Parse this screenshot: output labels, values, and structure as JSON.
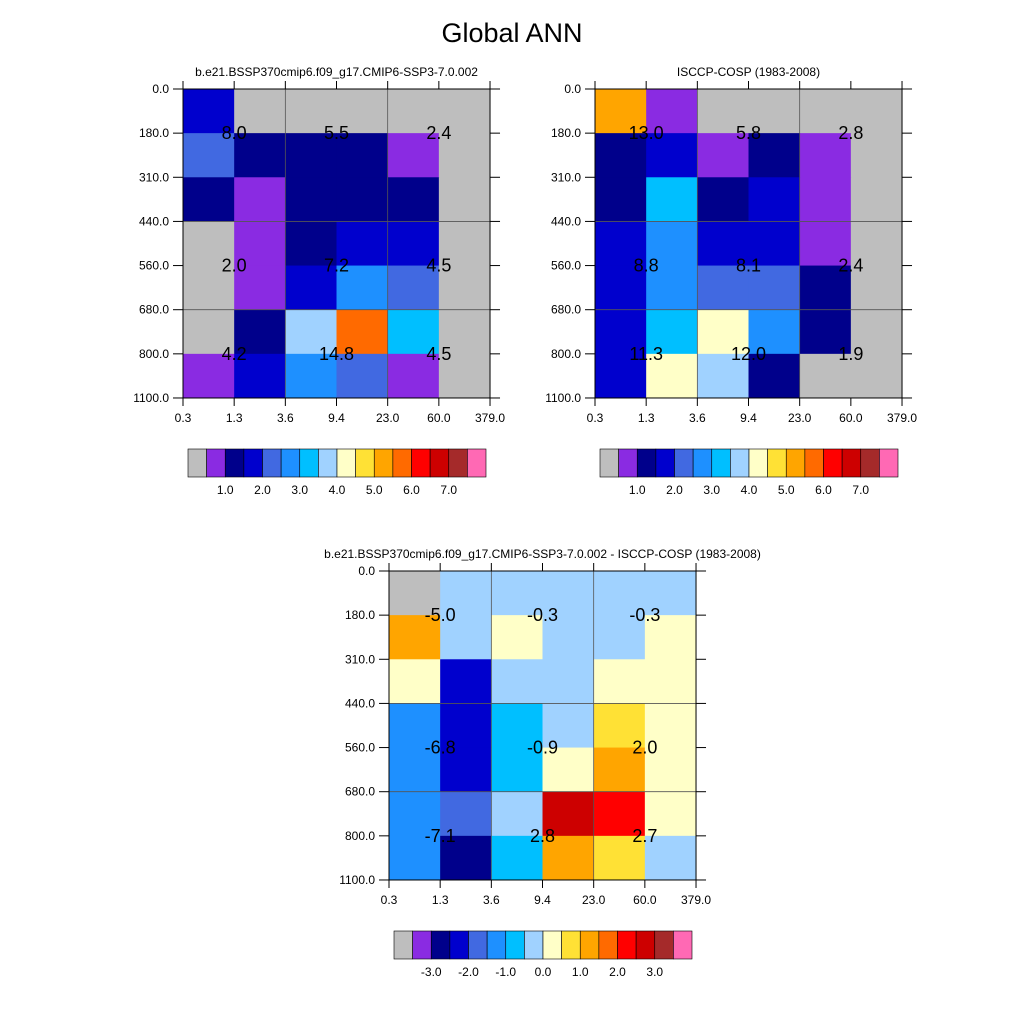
{
  "title": "Global ANN",
  "chart_data": [
    {
      "type": "heatmap",
      "title": "b.e21.BSSP370cmip6.f09_g17.CMIP6-SSP3-7.0.002",
      "x_ticks": [
        "0.3",
        "1.3",
        "3.6",
        "9.4",
        "23.0",
        "60.0",
        "379.0"
      ],
      "y_ticks": [
        "0.0",
        "180.0",
        "310.0",
        "440.0",
        "560.0",
        "680.0",
        "800.0",
        "1100.0"
      ],
      "colorbar_levels": [
        "1.0",
        "2.0",
        "3.0",
        "4.0",
        "5.0",
        "6.0",
        "7.0"
      ],
      "grid": true,
      "cell_colors": [
        [
          "#0000CD",
          "#BEBEBE",
          "#BEBEBE",
          "#BEBEBE",
          "#BEBEBE",
          "#BEBEBE"
        ],
        [
          "#4169E1",
          "#00008B",
          "#00008B",
          "#00008B",
          "#8A2BE2",
          "#BEBEBE"
        ],
        [
          "#00008B",
          "#8A2BE2",
          "#00008B",
          "#00008B",
          "#00008B",
          "#BEBEBE"
        ],
        [
          "#BEBEBE",
          "#8A2BE2",
          "#00008B",
          "#0000CD",
          "#0000CD",
          "#BEBEBE"
        ],
        [
          "#BEBEBE",
          "#8A2BE2",
          "#0000CD",
          "#1E90FF",
          "#4169E1",
          "#BEBEBE"
        ],
        [
          "#BEBEBE",
          "#00008B",
          "#A0D2FF",
          "#FF6A00",
          "#00BFFF",
          "#BEBEBE"
        ],
        [
          "#8A2BE2",
          "#0000CD",
          "#1E90FF",
          "#4169E1",
          "#8A2BE2",
          "#BEBEBE"
        ]
      ],
      "annotations": [
        {
          "text": "8.0",
          "x": "1.3",
          "y": "180.0"
        },
        {
          "text": "5.5",
          "x": "9.4",
          "y": "180.0"
        },
        {
          "text": "2.4",
          "x": "60.0",
          "y": "180.0"
        },
        {
          "text": "2.0",
          "x": "1.3",
          "y": "560.0"
        },
        {
          "text": "7.2",
          "x": "9.4",
          "y": "560.0"
        },
        {
          "text": "4.5",
          "x": "60.0",
          "y": "560.0"
        },
        {
          "text": "4.2",
          "x": "1.3",
          "y": "800.0"
        },
        {
          "text": "14.8",
          "x": "9.4",
          "y": "800.0"
        },
        {
          "text": "4.5",
          "x": "60.0",
          "y": "800.0"
        }
      ]
    },
    {
      "type": "heatmap",
      "title": "ISCCP-COSP (1983-2008)",
      "x_ticks": [
        "0.3",
        "1.3",
        "3.6",
        "9.4",
        "23.0",
        "60.0",
        "379.0"
      ],
      "y_ticks": [
        "0.0",
        "180.0",
        "310.0",
        "440.0",
        "560.0",
        "680.0",
        "800.0",
        "1100.0"
      ],
      "colorbar_levels": [
        "1.0",
        "2.0",
        "3.0",
        "4.0",
        "5.0",
        "6.0",
        "7.0"
      ],
      "grid": true,
      "cell_colors": [
        [
          "#FFA500",
          "#8A2BE2",
          "#BEBEBE",
          "#BEBEBE",
          "#BEBEBE",
          "#BEBEBE"
        ],
        [
          "#00008B",
          "#0000CD",
          "#8A2BE2",
          "#00008B",
          "#8A2BE2",
          "#BEBEBE"
        ],
        [
          "#00008B",
          "#00BFFF",
          "#00008B",
          "#0000CD",
          "#8A2BE2",
          "#BEBEBE"
        ],
        [
          "#0000CD",
          "#1E90FF",
          "#0000CD",
          "#0000CD",
          "#8A2BE2",
          "#BEBEBE"
        ],
        [
          "#0000CD",
          "#1E90FF",
          "#4169E1",
          "#4169E1",
          "#00008B",
          "#BEBEBE"
        ],
        [
          "#0000CD",
          "#00BFFF",
          "#FFFFC8",
          "#1E90FF",
          "#00008B",
          "#BEBEBE"
        ],
        [
          "#0000CD",
          "#FFFFC8",
          "#A0D2FF",
          "#00008B",
          "#BEBEBE",
          "#BEBEBE"
        ]
      ],
      "annotations": [
        {
          "text": "13.0",
          "x": "1.3",
          "y": "180.0"
        },
        {
          "text": "5.8",
          "x": "9.4",
          "y": "180.0"
        },
        {
          "text": "2.8",
          "x": "60.0",
          "y": "180.0"
        },
        {
          "text": "8.8",
          "x": "1.3",
          "y": "560.0"
        },
        {
          "text": "8.1",
          "x": "9.4",
          "y": "560.0"
        },
        {
          "text": "2.4",
          "x": "60.0",
          "y": "560.0"
        },
        {
          "text": "11.3",
          "x": "1.3",
          "y": "800.0"
        },
        {
          "text": "12.0",
          "x": "9.4",
          "y": "800.0"
        },
        {
          "text": "1.9",
          "x": "60.0",
          "y": "800.0"
        }
      ]
    },
    {
      "type": "heatmap",
      "title": "b.e21.BSSP370cmip6.f09_g17.CMIP6-SSP3-7.0.002 - ISCCP-COSP (1983-2008)",
      "x_ticks": [
        "0.3",
        "1.3",
        "3.6",
        "9.4",
        "23.0",
        "60.0",
        "379.0"
      ],
      "y_ticks": [
        "0.0",
        "180.0",
        "310.0",
        "440.0",
        "560.0",
        "680.0",
        "800.0",
        "1100.0"
      ],
      "colorbar_levels": [
        "-3.0",
        "-2.0",
        "-1.0",
        "0.0",
        "1.0",
        "2.0",
        "3.0"
      ],
      "grid": true,
      "cell_colors": [
        [
          "#BEBEBE",
          "#A0D2FF",
          "#A0D2FF",
          "#A0D2FF",
          "#A0D2FF",
          "#A0D2FF"
        ],
        [
          "#FFA500",
          "#A0D2FF",
          "#FFFFC8",
          "#A0D2FF",
          "#A0D2FF",
          "#FFFFC8"
        ],
        [
          "#FFFFC8",
          "#0000CD",
          "#A0D2FF",
          "#A0D2FF",
          "#FFFFC8",
          "#FFFFC8"
        ],
        [
          "#1E90FF",
          "#0000CD",
          "#00BFFF",
          "#A0D2FF",
          "#FFE135",
          "#FFFFC8"
        ],
        [
          "#1E90FF",
          "#0000CD",
          "#00BFFF",
          "#FFFFC8",
          "#FFA500",
          "#FFFFC8"
        ],
        [
          "#1E90FF",
          "#4169E1",
          "#A0D2FF",
          "#CD0000",
          "#FF0000",
          "#FFFFC8"
        ],
        [
          "#1E90FF",
          "#00008B",
          "#00BFFF",
          "#FFA500",
          "#FFE135",
          "#A0D2FF"
        ]
      ],
      "annotations": [
        {
          "text": "-5.0",
          "x": "1.3",
          "y": "180.0"
        },
        {
          "text": "-0.3",
          "x": "9.4",
          "y": "180.0"
        },
        {
          "text": "-0.3",
          "x": "60.0",
          "y": "180.0"
        },
        {
          "text": "-6.8",
          "x": "1.3",
          "y": "560.0"
        },
        {
          "text": "-0.9",
          "x": "9.4",
          "y": "560.0"
        },
        {
          "text": "2.0",
          "x": "60.0",
          "y": "560.0"
        },
        {
          "text": "-7.1",
          "x": "1.3",
          "y": "800.0"
        },
        {
          "text": "2.8",
          "x": "9.4",
          "y": "800.0"
        },
        {
          "text": "2.7",
          "x": "60.0",
          "y": "800.0"
        }
      ]
    }
  ],
  "colorbar_colors": [
    "#BEBEBE",
    "#8A2BE2",
    "#00008B",
    "#0000CD",
    "#4169E1",
    "#1E90FF",
    "#00BFFF",
    "#A0D2FF",
    "#FFFFC8",
    "#FFE135",
    "#FFA500",
    "#FF6A00",
    "#FF0000",
    "#CD0000",
    "#A52A2A",
    "#FF69B4"
  ]
}
